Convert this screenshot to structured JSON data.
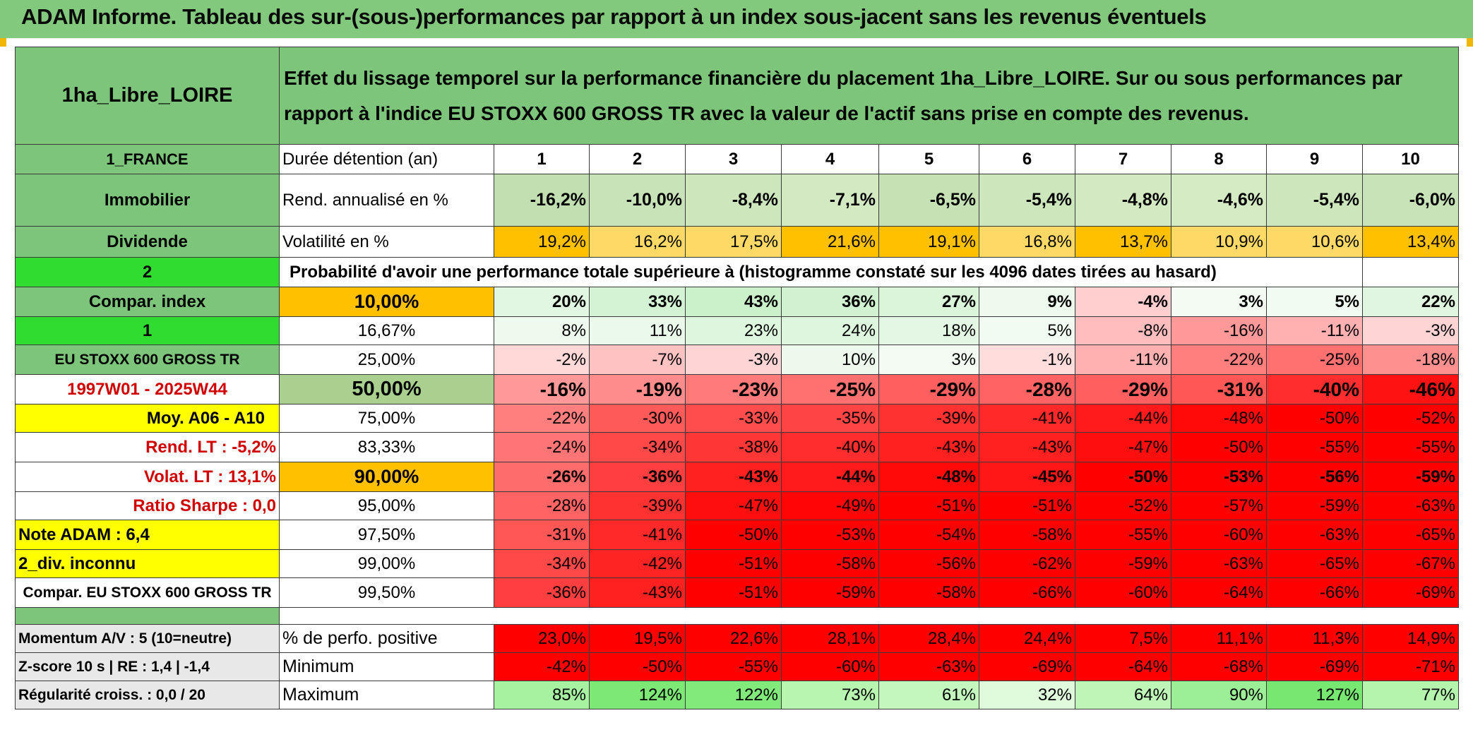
{
  "title": "ADAM Informe. Tableau des sur-(sous-)performances par rapport à un index sous-jacent sans les revenus éventuels",
  "fund_name": "1ha_Libre_LOIRE",
  "description": "Effet du lissage temporel sur la performance financière du placement 1ha_Libre_LOIRE. Sur ou sous performances par rapport à l'indice EU STOXX 600 GROSS TR avec la valeur de l'actif sans prise en compte des revenus.",
  "left_labels": {
    "country": "1_FRANCE",
    "category": "Immobilier",
    "income": "Dividende",
    "code2": "2",
    "compar_index": "Compar. index",
    "code1": "1",
    "index_name": "EU STOXX 600 GROSS TR",
    "period": "1997W01 - 2025W44",
    "moy": "Moy. A06 - A10",
    "rend_lt": "Rend. LT :   -5,2%",
    "volat_lt": "Volat. LT :   13,1%",
    "sharpe": "Ratio Sharpe :    0,0",
    "note": "Note ADAM : 6,4",
    "div": "2_div. inconnu",
    "compar_full": "Compar. EU STOXX 600 GROSS TR",
    "momentum": "Momentum A/V : 5 (10=neutre)",
    "zscore": "Z-score 10 s | RE : 1,4 | -1,4",
    "regularite": "Régularité croiss. : 0,0 / 20"
  },
  "row_labels": {
    "duree": "Durée détention (an)",
    "rend": "Rend. annualisé en %",
    "vol": "Volatilité en %",
    "proba": "Probabilité d'avoir une performance totale supérieure à (histogramme constaté sur les 4096 dates tirées au hasard)",
    "pos": "% de perfo. positive",
    "min": "Minimum",
    "max": "Maximum"
  },
  "years": [
    "1",
    "2",
    "3",
    "4",
    "5",
    "6",
    "7",
    "8",
    "9",
    "10"
  ],
  "rendement": [
    "-16,2%",
    "-10,0%",
    "-8,4%",
    "-7,1%",
    "-6,5%",
    "-5,4%",
    "-4,8%",
    "-4,6%",
    "-5,4%",
    "-6,0%"
  ],
  "volatilite": [
    "19,2%",
    "16,2%",
    "17,5%",
    "21,6%",
    "19,1%",
    "16,8%",
    "13,7%",
    "10,9%",
    "10,6%",
    "13,4%"
  ],
  "percentile_rows": [
    {
      "p": "10,00%",
      "values": [
        "20%",
        "33%",
        "43%",
        "36%",
        "27%",
        "9%",
        "-4%",
        "3%",
        "5%",
        "22%"
      ]
    },
    {
      "p": "16,67%",
      "values": [
        "8%",
        "11%",
        "23%",
        "24%",
        "18%",
        "5%",
        "-8%",
        "-16%",
        "-11%",
        "-3%"
      ]
    },
    {
      "p": "25,00%",
      "values": [
        "-2%",
        "-7%",
        "-3%",
        "10%",
        "3%",
        "-1%",
        "-11%",
        "-22%",
        "-25%",
        "-18%"
      ]
    },
    {
      "p": "50,00%",
      "values": [
        "-16%",
        "-19%",
        "-23%",
        "-25%",
        "-29%",
        "-28%",
        "-29%",
        "-31%",
        "-40%",
        "-46%"
      ]
    },
    {
      "p": "75,00%",
      "values": [
        "-22%",
        "-30%",
        "-33%",
        "-35%",
        "-39%",
        "-41%",
        "-44%",
        "-48%",
        "-50%",
        "-52%"
      ]
    },
    {
      "p": "83,33%",
      "values": [
        "-24%",
        "-34%",
        "-38%",
        "-40%",
        "-43%",
        "-43%",
        "-47%",
        "-50%",
        "-55%",
        "-55%"
      ]
    },
    {
      "p": "90,00%",
      "values": [
        "-26%",
        "-36%",
        "-43%",
        "-44%",
        "-48%",
        "-45%",
        "-50%",
        "-53%",
        "-56%",
        "-59%"
      ]
    },
    {
      "p": "95,00%",
      "values": [
        "-28%",
        "-39%",
        "-47%",
        "-49%",
        "-51%",
        "-51%",
        "-52%",
        "-57%",
        "-59%",
        "-63%"
      ]
    },
    {
      "p": "97,50%",
      "values": [
        "-31%",
        "-41%",
        "-50%",
        "-53%",
        "-54%",
        "-58%",
        "-55%",
        "-60%",
        "-63%",
        "-65%"
      ]
    },
    {
      "p": "99,00%",
      "values": [
        "-34%",
        "-42%",
        "-51%",
        "-58%",
        "-56%",
        "-62%",
        "-59%",
        "-63%",
        "-65%",
        "-67%"
      ]
    },
    {
      "p": "99,50%",
      "values": [
        "-36%",
        "-43%",
        "-51%",
        "-59%",
        "-58%",
        "-66%",
        "-60%",
        "-64%",
        "-66%",
        "-69%"
      ]
    }
  ],
  "pos_perf": [
    "23,0%",
    "19,5%",
    "22,6%",
    "28,1%",
    "28,4%",
    "24,4%",
    "7,5%",
    "11,1%",
    "11,3%",
    "14,9%"
  ],
  "minimum": [
    "-42%",
    "-50%",
    "-55%",
    "-60%",
    "-63%",
    "-69%",
    "-64%",
    "-68%",
    "-69%",
    "-71%"
  ],
  "maximum": [
    "85%",
    "124%",
    "122%",
    "73%",
    "61%",
    "32%",
    "64%",
    "90%",
    "127%",
    "77%"
  ],
  "colors": {
    "header_green": "#82c97e",
    "label_green": "#7cc57a",
    "bright_green": "#2fdc2f",
    "yellow": "#ffff00",
    "orange": "#ffc000",
    "red_text": "#d00000"
  }
}
